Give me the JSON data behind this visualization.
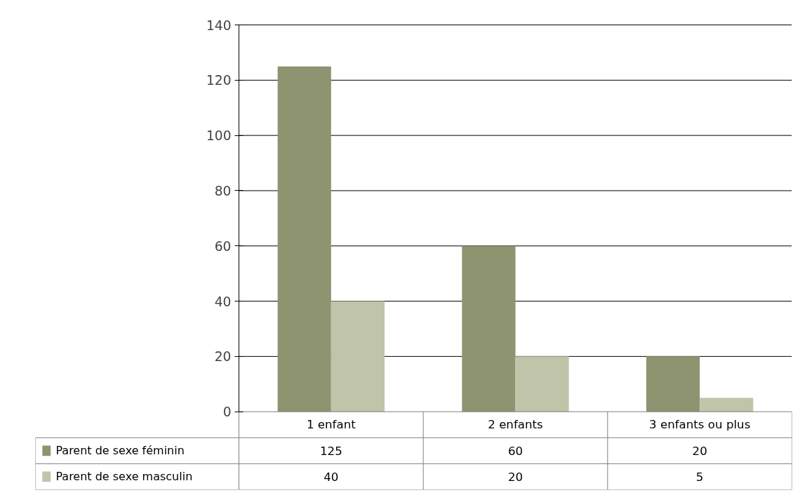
{
  "chart_data": {
    "type": "bar",
    "categories": [
      "1 enfant",
      "2 enfants",
      "3 enfants ou plus"
    ],
    "series": [
      {
        "name": "Parent de sexe féminin",
        "color": "#8e9470",
        "values": [
          125,
          60,
          20
        ]
      },
      {
        "name": "Parent de sexe masculin",
        "color": "#c0c4a8",
        "values": [
          40,
          20,
          5
        ]
      }
    ],
    "ylim": [
      0,
      140
    ],
    "yticks": [
      0,
      20,
      40,
      60,
      80,
      100,
      120,
      140
    ],
    "grid": "y",
    "legend": "bottom",
    "data_labels": true
  }
}
